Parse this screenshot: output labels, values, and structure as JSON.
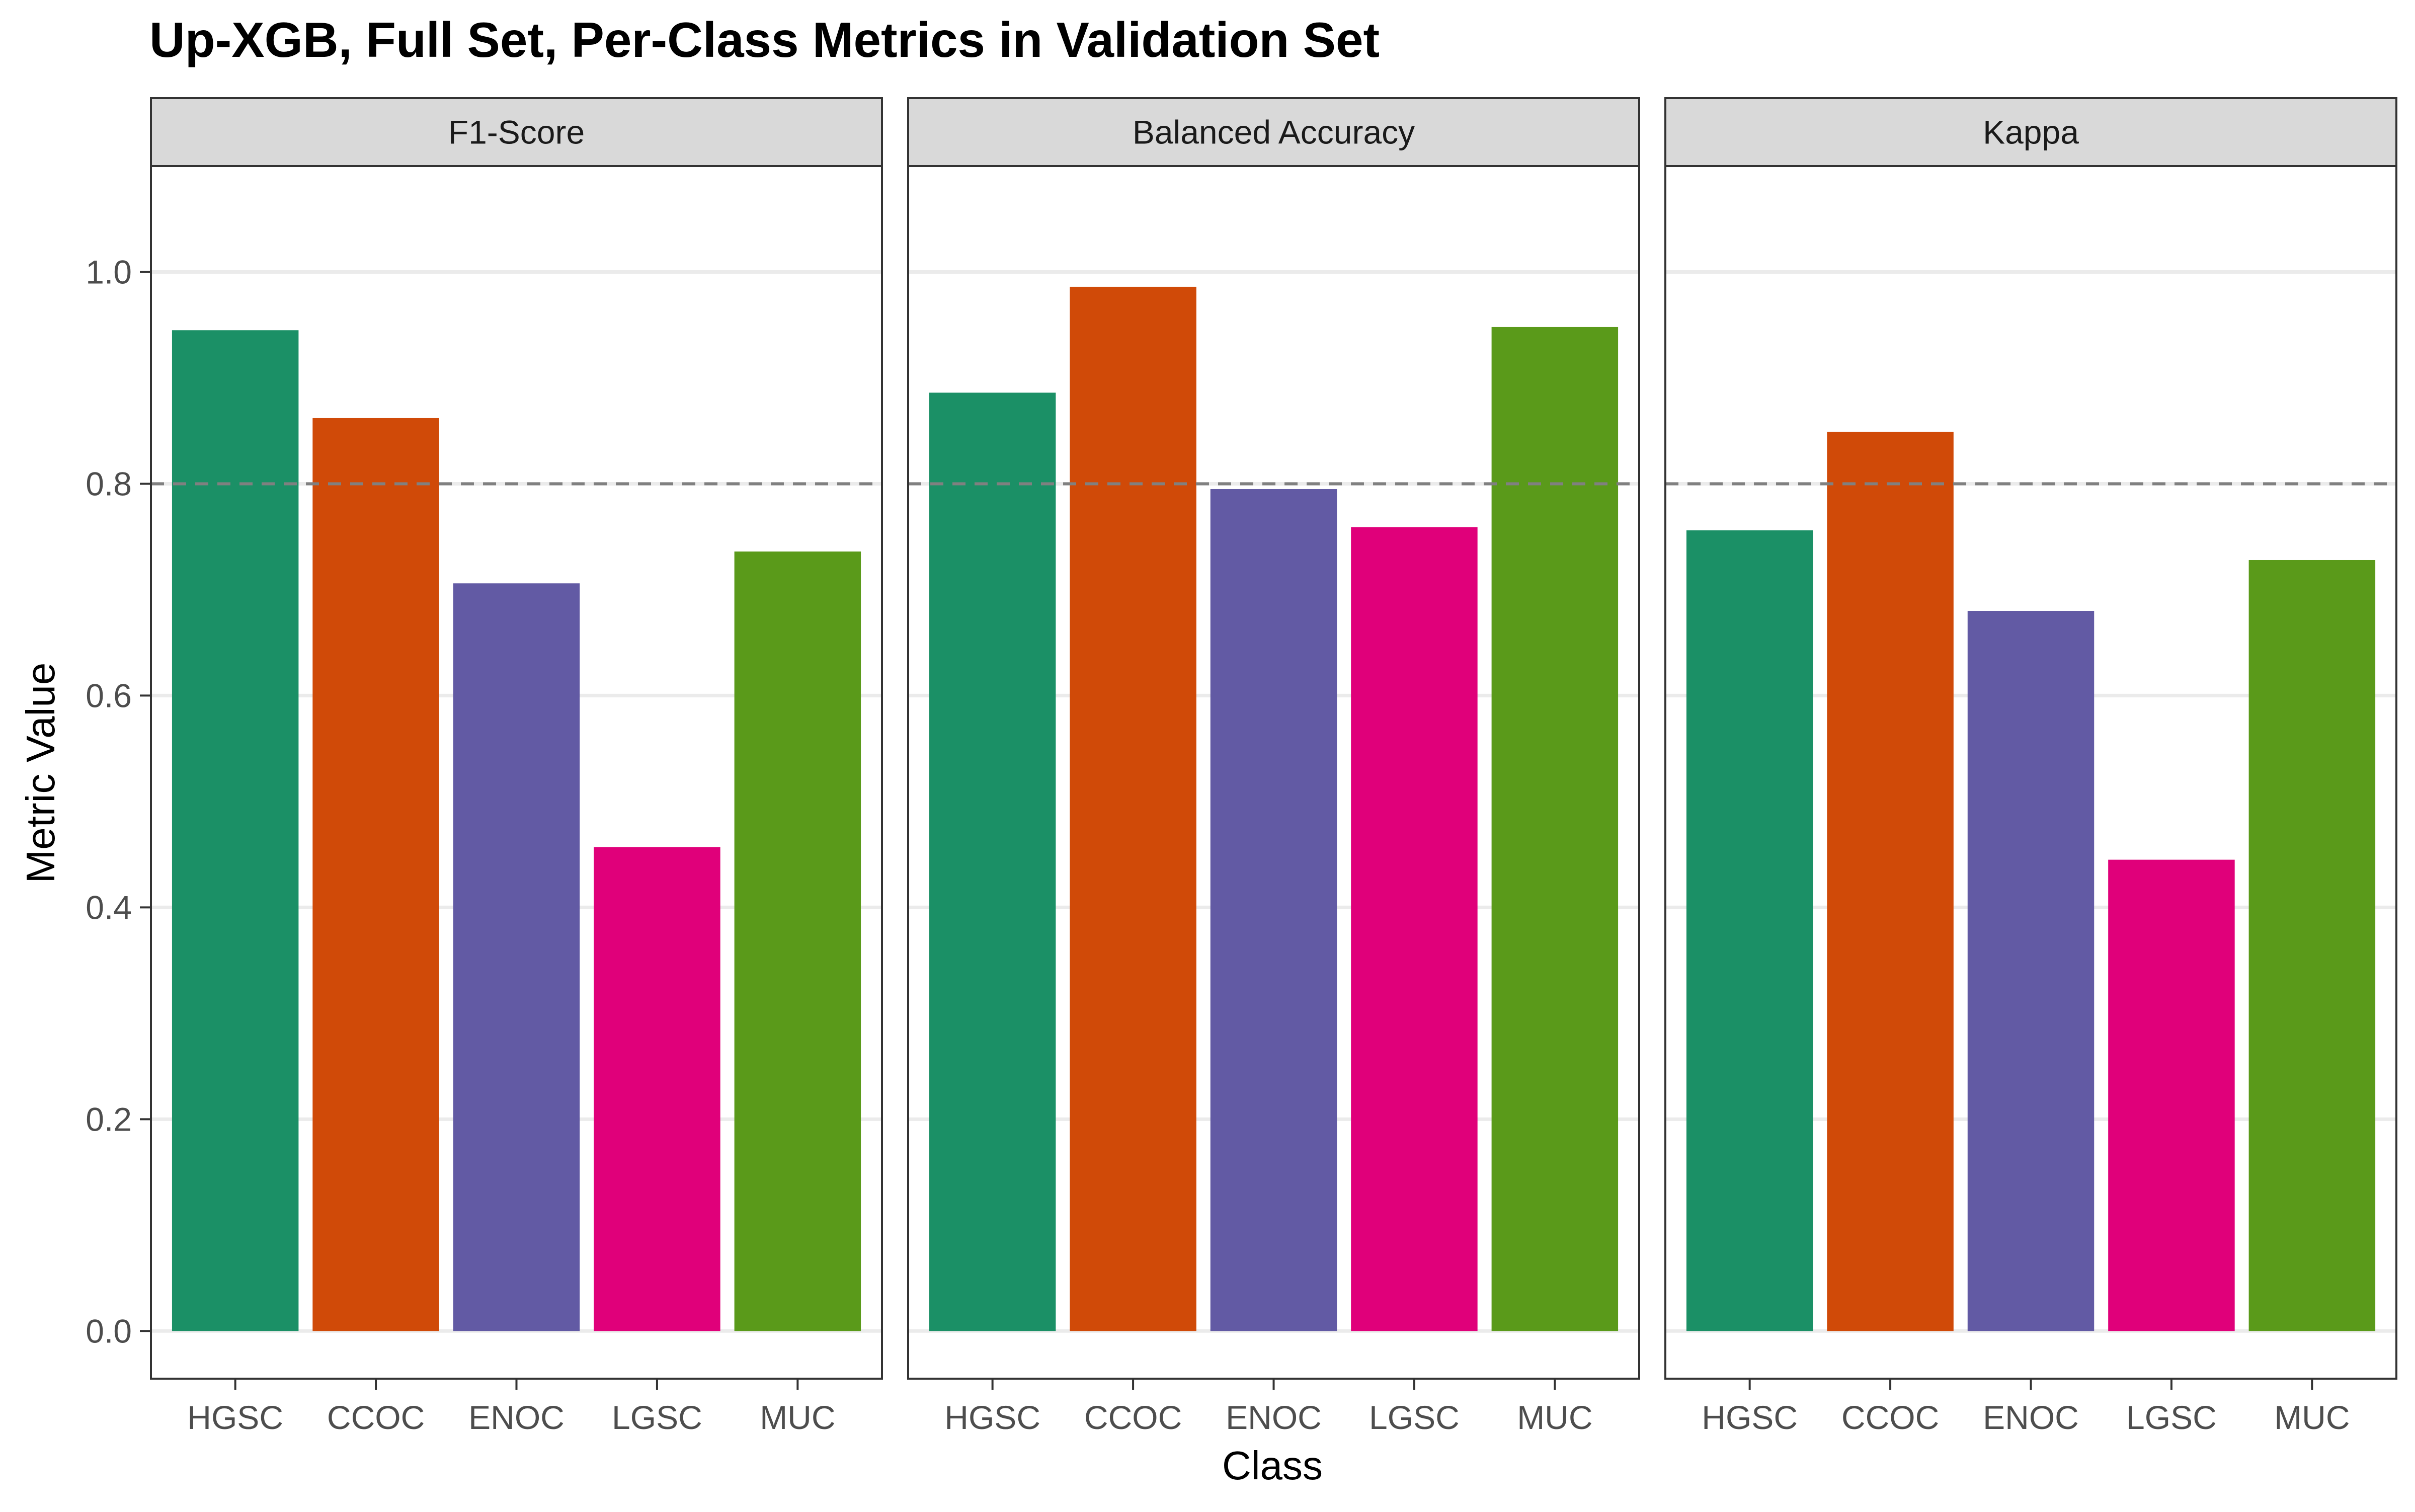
{
  "chart_data": {
    "type": "bar",
    "title": "Up-XGB, Full Set, Per-Class Metrics in Validation Set",
    "xlabel": "Class",
    "ylabel": "Metric Value",
    "categories": [
      "HGSC",
      "CCOC",
      "ENOC",
      "LGSC",
      "MUC"
    ],
    "category_colors": [
      "#1b9066",
      "#d04a08",
      "#625aa4",
      "#e0007a",
      "#5a9a1a"
    ],
    "ylim": [
      -0.045,
      1.1
    ],
    "yticks": [
      0.0,
      0.2,
      0.4,
      0.6,
      0.8,
      1.0
    ],
    "ytick_labels": [
      "0.0",
      "0.2",
      "0.4",
      "0.6",
      "0.8",
      "1.0"
    ],
    "reference_line": {
      "y": 0.8,
      "style": "dashed",
      "color": "#808080"
    },
    "grid": true,
    "facets": [
      {
        "name": "F1-Score",
        "values": [
          0.945,
          0.862,
          0.706,
          0.457,
          0.736
        ]
      },
      {
        "name": "Balanced Accuracy",
        "values": [
          0.886,
          0.986,
          0.795,
          0.759,
          0.948
        ]
      },
      {
        "name": "Kappa",
        "values": [
          0.756,
          0.849,
          0.68,
          0.445,
          0.728
        ]
      }
    ]
  }
}
